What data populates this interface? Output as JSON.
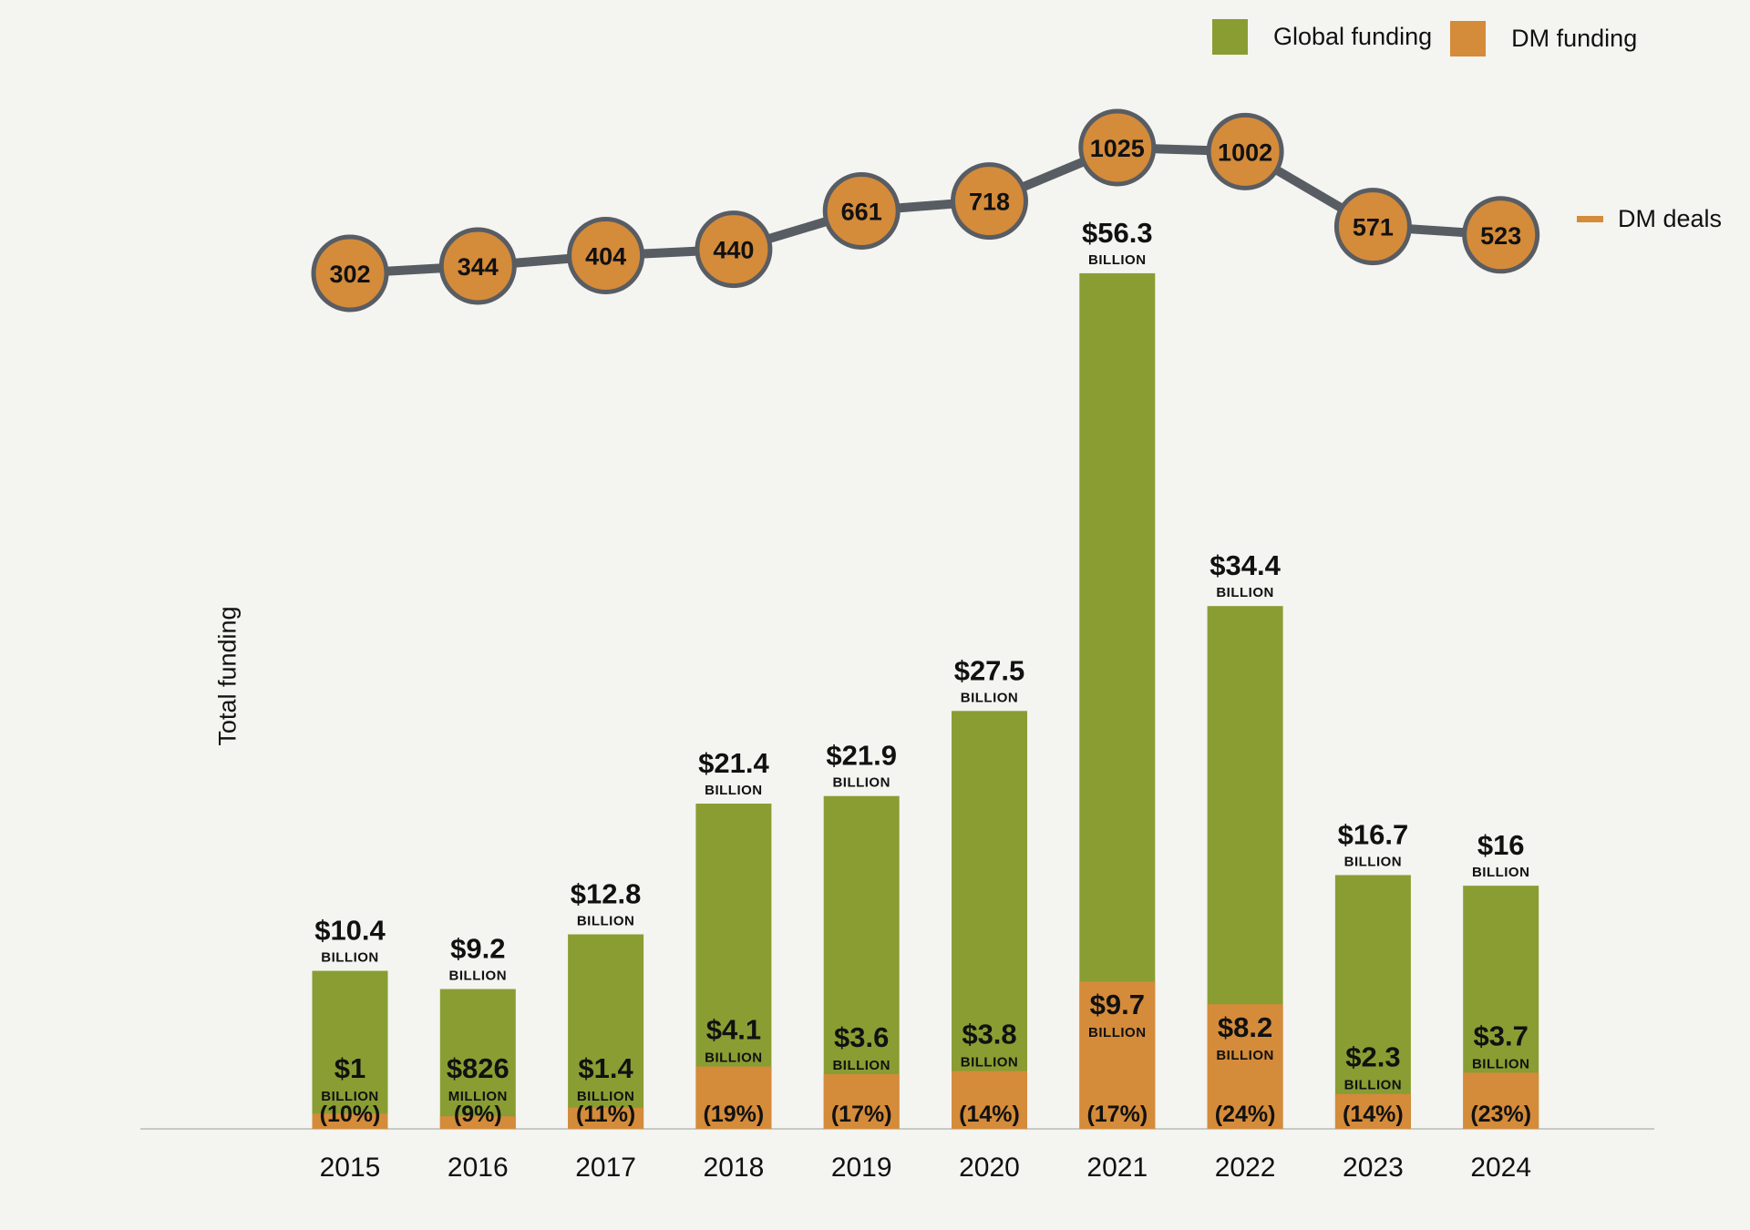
{
  "colors": {
    "global": "#899d33",
    "dm": "#d48b3a",
    "deals_line": "#585c63",
    "deals_marker": "#d48b3a",
    "axis": "#c8c8c4",
    "background": "#f4f4f0"
  },
  "legend": {
    "global_label": "Global funding",
    "dm_label": "DM funding",
    "deals_label": "DM deals"
  },
  "chart_data": {
    "type": "bar",
    "title": "",
    "xlabel": "",
    "ylabel": "Total funding",
    "grid": false,
    "legend_position": "top-right",
    "categories": [
      "2015",
      "2016",
      "2017",
      "2018",
      "2019",
      "2020",
      "2021",
      "2022",
      "2023",
      "2024"
    ],
    "series": [
      {
        "name": "Global funding",
        "unit": "USD billion",
        "values": [
          10.4,
          9.2,
          12.8,
          21.4,
          21.9,
          27.5,
          56.3,
          34.4,
          16.7,
          16
        ],
        "labels": [
          "$10.4",
          "$9.2",
          "$12.8",
          "$21.4",
          "$21.9",
          "$27.5",
          "$56.3",
          "$34.4",
          "$16.7",
          "$16"
        ],
        "label_units": [
          "BILLION",
          "BILLION",
          "BILLION",
          "BILLION",
          "BILLION",
          "BILLION",
          "BILLION",
          "BILLION",
          "BILLION",
          "BILLION"
        ]
      },
      {
        "name": "DM funding",
        "unit": "USD billion",
        "values": [
          1,
          0.826,
          1.4,
          4.1,
          3.6,
          3.8,
          9.7,
          8.2,
          2.3,
          3.7
        ],
        "labels": [
          "$1",
          "$826",
          "$1.4",
          "$4.1",
          "$3.6",
          "$3.8",
          "$9.7",
          "$8.2",
          "$2.3",
          "$3.7"
        ],
        "label_units": [
          "BILLION",
          "MILLION",
          "BILLION",
          "BILLION",
          "BILLION",
          "BILLION",
          "BILLION",
          "BILLION",
          "BILLION",
          "BILLION"
        ],
        "share_labels": [
          "(10%)",
          "(9%)",
          "(11%)",
          "(19%)",
          "(17%)",
          "(14%)",
          "(17%)",
          "(24%)",
          "(14%)",
          "(23%)"
        ]
      },
      {
        "name": "DM deals",
        "type": "line",
        "values": [
          302,
          344,
          404,
          440,
          661,
          718,
          1025,
          1002,
          571,
          523
        ]
      }
    ]
  }
}
